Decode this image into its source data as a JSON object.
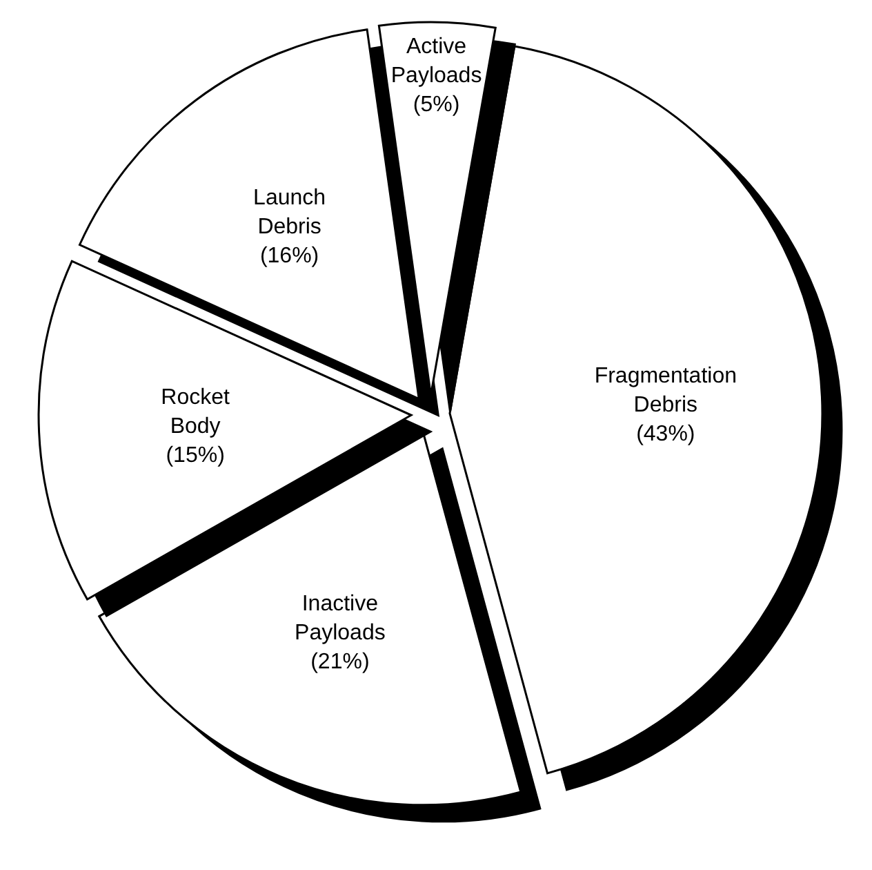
{
  "chart_data": {
    "type": "pie",
    "categories": [
      "Fragmentation Debris",
      "Inactive Payloads",
      "Rocket Body",
      "Launch Debris",
      "Active Payloads"
    ],
    "values": [
      43,
      21,
      15,
      16,
      5
    ],
    "value_labels": [
      "(43%)",
      "(21%)",
      "(15%)",
      "(16%)",
      "(5%)"
    ],
    "colors": [
      "#ffffff",
      "#ffffff",
      "#ffffff",
      "#ffffff",
      "#ffffff"
    ]
  }
}
